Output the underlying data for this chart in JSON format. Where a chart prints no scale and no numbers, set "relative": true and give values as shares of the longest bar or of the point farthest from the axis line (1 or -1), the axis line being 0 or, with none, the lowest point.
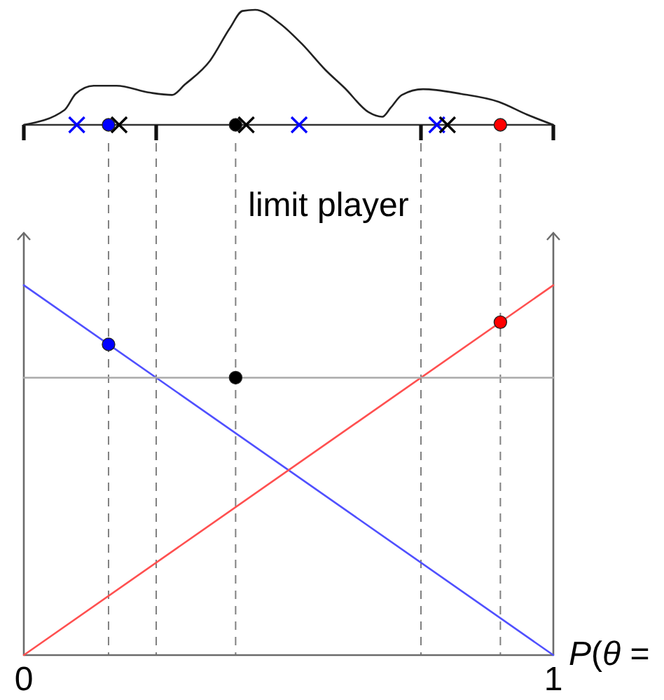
{
  "chart_data": [
    {
      "type": "line",
      "relative": true,
      "tick_labels": false,
      "xlim": [
        0,
        1
      ],
      "xticks": [
        0,
        0.25,
        0.75,
        1
      ],
      "series": [
        {
          "color": "#222222",
          "x": [
            0,
            0.077,
            0.098,
            0.132,
            0.175,
            0.238,
            0.28,
            0.304,
            0.352,
            0.389,
            0.413,
            0.437,
            0.484,
            0.526,
            0.569,
            0.606,
            0.651,
            0.677,
            0.693,
            0.714,
            0.754,
            0.825,
            0.897,
            0.95,
            1
          ],
          "values": [
            0,
            0.13,
            0.27,
            0.34,
            0.34,
            0.28,
            0.26,
            0.35,
            0.56,
            0.84,
            0.99,
            1,
            0.88,
            0.7,
            0.48,
            0.32,
            0.11,
            0.07,
            0.15,
            0.26,
            0.31,
            0.27,
            0.2,
            0.09,
            0
          ]
        },
        {
          "type": "scatter",
          "marker": "cross",
          "color": "#0000ff",
          "x": [
            0.1,
            0.52,
            0.78
          ],
          "values": [
            0,
            0,
            0
          ]
        },
        {
          "type": "scatter",
          "marker": "cross",
          "color": "#000000",
          "x": [
            0.18,
            0.42,
            0.8
          ],
          "values": [
            0,
            0,
            0
          ]
        },
        {
          "type": "scatter",
          "marker": "circle",
          "colors": [
            "#0000ff",
            "#000000",
            "#ff0000"
          ],
          "x": [
            0.16,
            0.4,
            0.9
          ],
          "values": [
            0,
            0,
            0
          ]
        }
      ]
    },
    {
      "type": "line",
      "title": "limit player",
      "xlabel": "P(θ =",
      "relative": true,
      "xlim": [
        0,
        1
      ],
      "xticks": [
        0,
        1
      ],
      "series": [
        {
          "color": "#5050ff",
          "x": [
            0,
            1
          ],
          "values": [
            1,
            0
          ]
        },
        {
          "color": "#ff5050",
          "x": [
            0,
            1
          ],
          "values": [
            0,
            1
          ]
        },
        {
          "color": "#aaaaaa",
          "x": [
            0,
            1
          ],
          "values": [
            0.75,
            0.75
          ]
        },
        {
          "type": "scatter",
          "marker": "circle",
          "colors": [
            "#0000ff",
            "#000000",
            "#ff0000"
          ],
          "x": [
            0.16,
            0.4,
            0.9
          ],
          "values": [
            0.84,
            0.75,
            0.9
          ]
        }
      ],
      "ref_lines": [
        {
          "axis": "x",
          "value": 0.16,
          "color": "#808080",
          "line_style": "dashed"
        },
        {
          "axis": "x",
          "value": 0.25,
          "color": "#808080",
          "line_style": "dashed"
        },
        {
          "axis": "x",
          "value": 0.4,
          "color": "#808080",
          "line_style": "dashed"
        },
        {
          "axis": "x",
          "value": 0.75,
          "color": "#808080",
          "line_style": "dashed"
        },
        {
          "axis": "x",
          "value": 0.9,
          "color": "#808080",
          "line_style": "dashed"
        }
      ]
    }
  ]
}
